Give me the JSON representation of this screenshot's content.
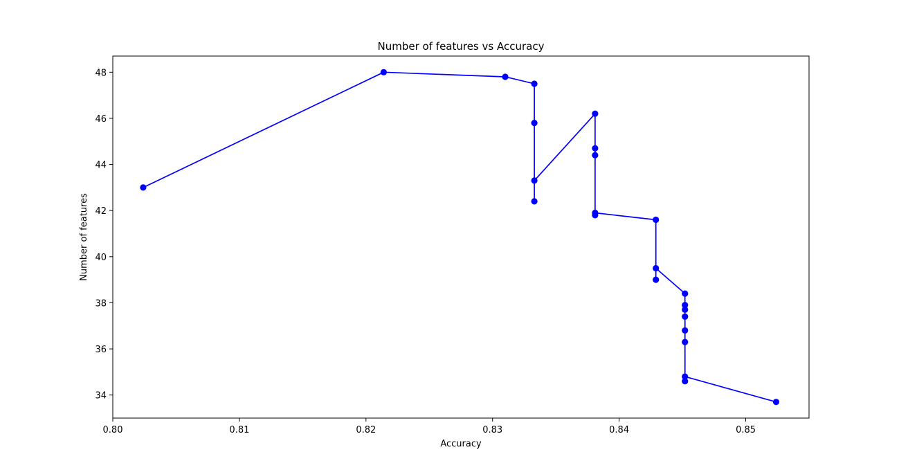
{
  "chart_data": {
    "type": "line",
    "title": "Number of features vs Accuracy",
    "xlabel": "Accuracy",
    "ylabel": "Number of features",
    "xlim": [
      0.8,
      0.855
    ],
    "ylim": [
      33.0,
      48.7
    ],
    "x_ticks": [
      0.8,
      0.81,
      0.82,
      0.83,
      0.84,
      0.85
    ],
    "x_tick_labels": [
      "0.80",
      "0.81",
      "0.82",
      "0.83",
      "0.84",
      "0.85"
    ],
    "y_ticks": [
      34,
      36,
      38,
      40,
      42,
      44,
      46,
      48
    ],
    "y_tick_labels": [
      "34",
      "36",
      "38",
      "40",
      "42",
      "44",
      "46",
      "48"
    ],
    "grid": false,
    "legend": "none",
    "series": [
      {
        "color": "#0000ff",
        "marker": "circle",
        "x": [
          0.8024,
          0.8214,
          0.831,
          0.8333,
          0.8333,
          0.8333,
          0.8333,
          0.8381,
          0.8381,
          0.8381,
          0.8381,
          0.8381,
          0.8429,
          0.8429,
          0.8429,
          0.8452,
          0.8452,
          0.8452,
          0.8452,
          0.8452,
          0.8452,
          0.8452,
          0.8452,
          0.8524
        ],
        "y": [
          43.0,
          48.0,
          47.8,
          47.5,
          45.8,
          42.4,
          43.3,
          46.2,
          44.7,
          44.4,
          41.8,
          41.9,
          41.6,
          39.0,
          39.5,
          38.4,
          37.9,
          37.7,
          37.4,
          36.8,
          36.3,
          34.6,
          34.8,
          33.7
        ]
      }
    ]
  }
}
